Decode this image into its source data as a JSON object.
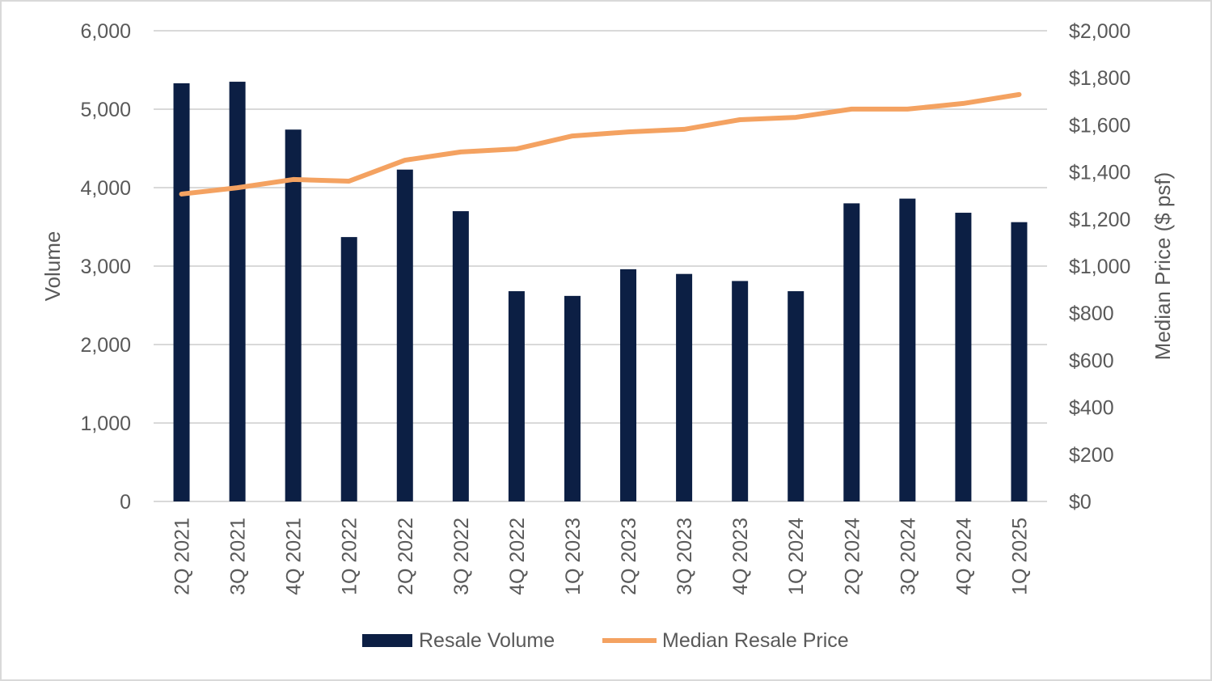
{
  "chart_data": {
    "type": "bar+line",
    "title": "",
    "categories": [
      "2Q 2021",
      "3Q 2021",
      "4Q 2021",
      "1Q 2022",
      "2Q 2022",
      "3Q 2022",
      "4Q 2022",
      "1Q 2023",
      "2Q 2023",
      "3Q 2023",
      "4Q 2023",
      "1Q 2024",
      "2Q 2024",
      "3Q 2024",
      "4Q 2024",
      "1Q 2025"
    ],
    "series": [
      {
        "name": "Resale Volume",
        "type": "bar",
        "axis": "left",
        "color": "#0c1f44",
        "values": [
          5330,
          5350,
          4740,
          3370,
          4230,
          3700,
          2680,
          2620,
          2960,
          2900,
          2810,
          2680,
          3800,
          3860,
          3680,
          3560
        ]
      },
      {
        "name": "Median Resale Price",
        "type": "line",
        "axis": "right",
        "color": "#f4a261",
        "values": [
          1306,
          1333,
          1368,
          1361,
          1450,
          1485,
          1498,
          1553,
          1570,
          1581,
          1622,
          1632,
          1667,
          1667,
          1691,
          1729
        ]
      }
    ],
    "ylabel": "Volume",
    "ylim": [
      0,
      6000
    ],
    "yticks": [
      "0",
      "1,000",
      "2,000",
      "3,000",
      "4,000",
      "5,000",
      "6,000"
    ],
    "y2label": "Median Price ($ psf)",
    "y2lim": [
      0,
      2000
    ],
    "y2ticks": [
      "$0",
      "$200",
      "$400",
      "$600",
      "$800",
      "$1,000",
      "$1,200",
      "$1,400",
      "$1,600",
      "$1,800",
      "$2,000"
    ],
    "grid": true,
    "legend": "bottom"
  }
}
